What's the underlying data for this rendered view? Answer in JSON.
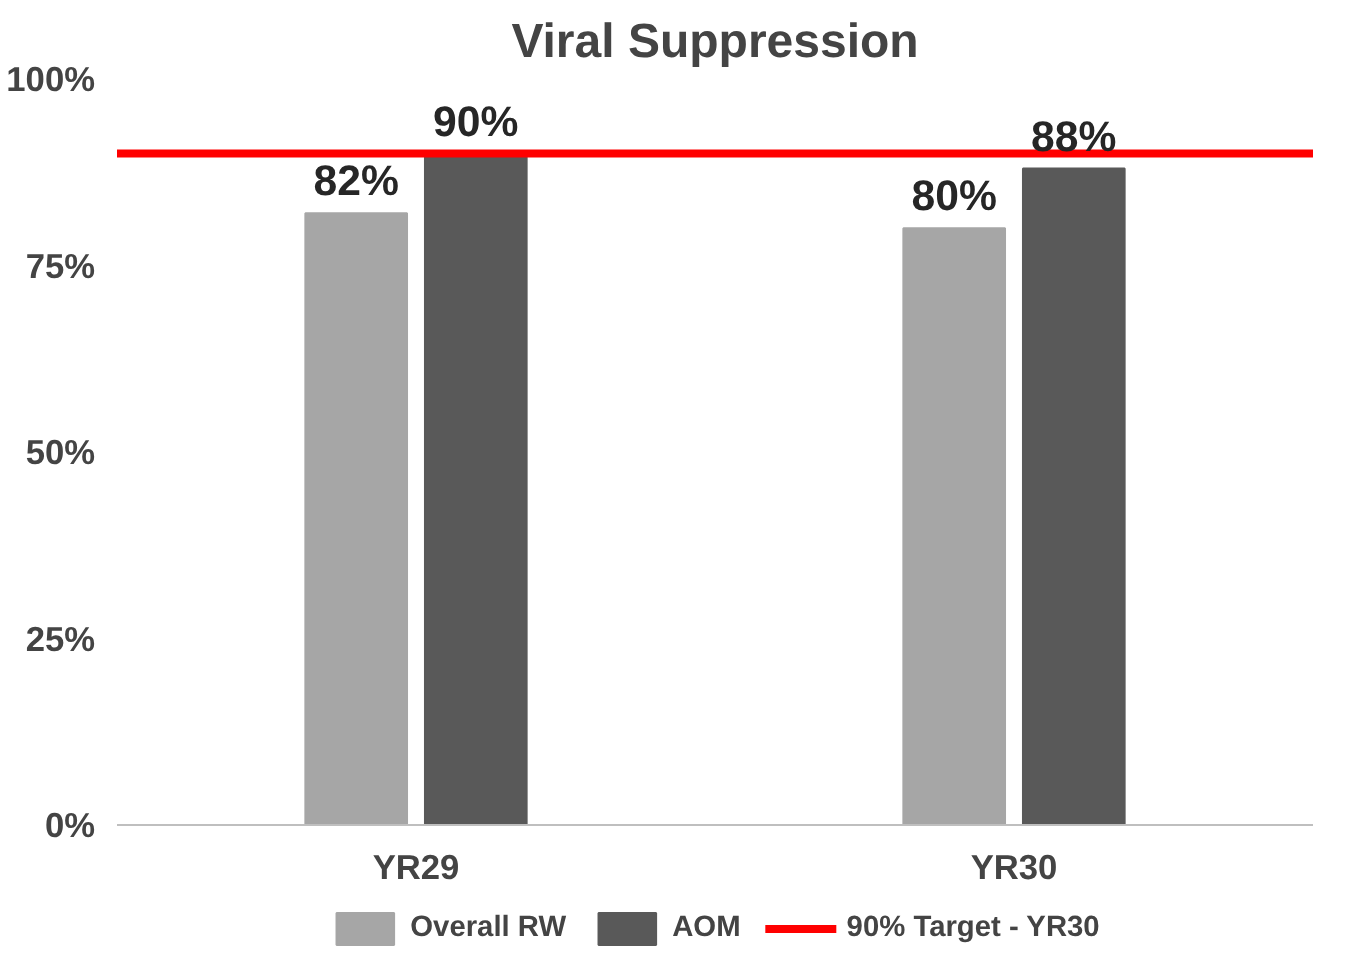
{
  "chart_data": {
    "type": "bar",
    "title": "Viral Suppression",
    "categories": [
      "YR29",
      "YR30"
    ],
    "series": [
      {
        "name": "Overall RW",
        "color": "#a6a6a6",
        "values": [
          82,
          80
        ],
        "value_labels": [
          "82%",
          "80%"
        ]
      },
      {
        "name": "AOM",
        "color": "#595959",
        "values": [
          90,
          88
        ],
        "value_labels": [
          "90%",
          "88%"
        ]
      }
    ],
    "ylim": [
      0,
      100
    ],
    "yticks": [
      {
        "value": 0,
        "label": "0%"
      },
      {
        "value": 25,
        "label": "25%"
      },
      {
        "value": 50,
        "label": "50%"
      },
      {
        "value": 75,
        "label": "75%"
      },
      {
        "value": 100,
        "label": "100%"
      }
    ],
    "ref_lines": [
      {
        "axis": "y",
        "value": 90,
        "label": "90% Target - YR30",
        "color": "#ff0000"
      }
    ],
    "grid": false,
    "legend": "bottom"
  }
}
